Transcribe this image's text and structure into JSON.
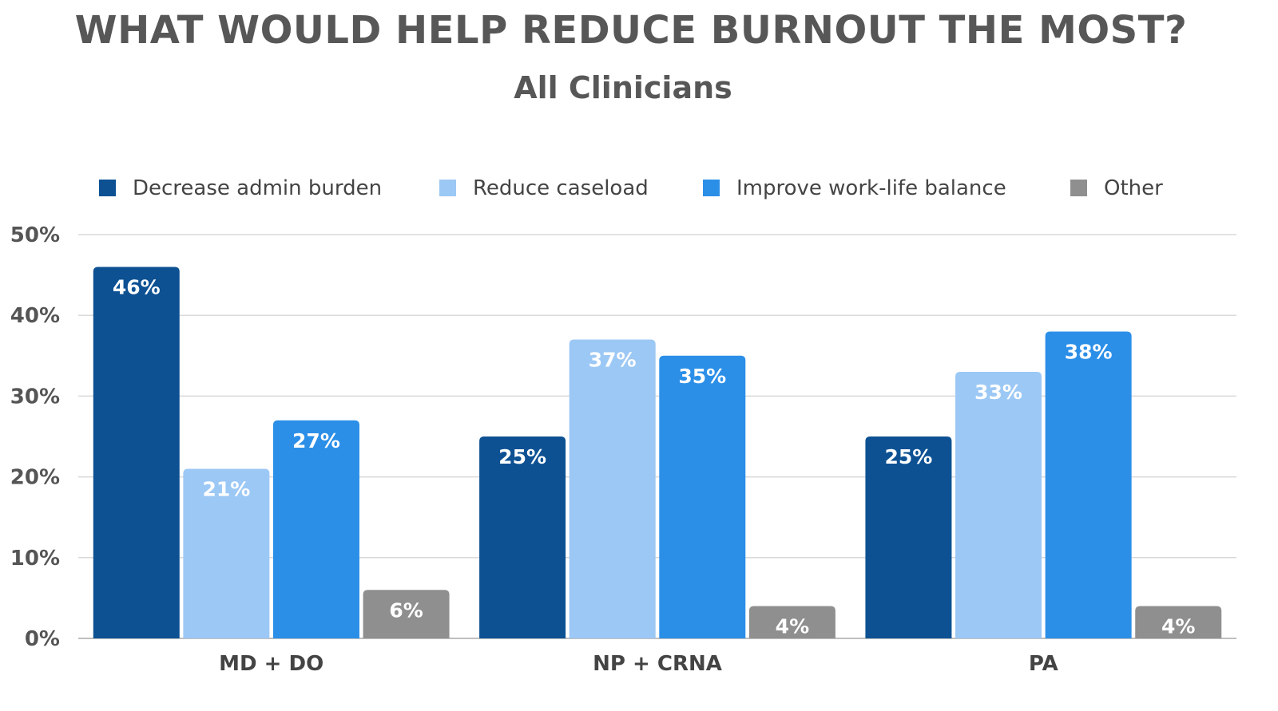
{
  "chart_data": {
    "type": "bar",
    "title": "WHAT WOULD HELP REDUCE BURNOUT THE MOST?",
    "subtitle": "All Clinicians",
    "categories": [
      "MD + DO",
      "NP + CRNA",
      "PA"
    ],
    "series": [
      {
        "name": "Decrease admin burden",
        "color": "#0d5193",
        "label_color": "#ffffff",
        "values": [
          46,
          25,
          25
        ],
        "labels": [
          "46%",
          "25%",
          "25%"
        ]
      },
      {
        "name": "Reduce caseload",
        "color": "#9cc8f5",
        "label_color": "#ffffff",
        "values": [
          21,
          37,
          33
        ],
        "labels": [
          "21%",
          "37%",
          "33%"
        ]
      },
      {
        "name": "Improve work-life balance",
        "color": "#2b8fe8",
        "label_color": "#ffffff",
        "values": [
          27,
          35,
          38
        ],
        "labels": [
          "27%",
          "35%",
          "38%"
        ]
      },
      {
        "name": "Other",
        "color": "#8f8f8f",
        "label_color": "#ffffff",
        "values": [
          6,
          4,
          4
        ],
        "labels": [
          "6%",
          "4%",
          "4%"
        ]
      }
    ],
    "ylim": [
      0,
      50
    ],
    "yticks": [
      0,
      10,
      20,
      30,
      40,
      50
    ],
    "ytick_labels": [
      "0%",
      "10%",
      "20%",
      "30%",
      "40%",
      "50%"
    ],
    "grid": true,
    "legend": "top"
  }
}
